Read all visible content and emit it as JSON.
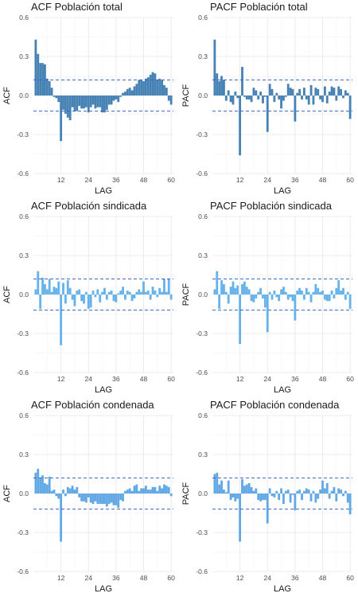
{
  "chart_data": [
    {
      "type": "bar",
      "title": "ACF Población total",
      "xlabel": "LAG",
      "ylabel": "ACF",
      "bar_color": "#4682b4",
      "ci_color": "#3366cc",
      "ylim": [
        -0.6,
        0.6
      ],
      "yticks": [
        "-0.6",
        "-0.3",
        "0.0",
        "0.3",
        "0.6"
      ],
      "xlim": [
        0,
        61
      ],
      "xticks": [
        12,
        24,
        36,
        48,
        60
      ],
      "ci": 0.12,
      "grid": true,
      "x": [
        1,
        2,
        3,
        4,
        5,
        6,
        7,
        8,
        9,
        10,
        11,
        12,
        13,
        14,
        15,
        16,
        17,
        18,
        19,
        20,
        21,
        22,
        23,
        24,
        25,
        26,
        27,
        28,
        29,
        30,
        31,
        32,
        33,
        34,
        35,
        36,
        37,
        38,
        39,
        40,
        41,
        42,
        43,
        44,
        45,
        46,
        47,
        48,
        49,
        50,
        51,
        52,
        53,
        54,
        55,
        56,
        57,
        58,
        59,
        60
      ],
      "values": [
        0.43,
        0.32,
        0.25,
        0.25,
        0.24,
        0.13,
        0.11,
        0.06,
        -0.01,
        -0.02,
        -0.05,
        -0.35,
        -0.11,
        -0.14,
        -0.17,
        -0.19,
        -0.09,
        -0.12,
        -0.12,
        -0.08,
        -0.1,
        -0.1,
        -0.09,
        -0.13,
        -0.09,
        -0.07,
        -0.1,
        -0.09,
        -0.09,
        -0.13,
        -0.13,
        -0.11,
        -0.07,
        -0.07,
        -0.04,
        -0.03,
        -0.05,
        -0.01,
        0.02,
        0.03,
        0.05,
        0.06,
        0.04,
        0.07,
        0.09,
        0.12,
        0.12,
        0.11,
        0.13,
        0.14,
        0.16,
        0.18,
        0.17,
        0.12,
        0.13,
        0.12,
        0.08,
        0.06,
        -0.04,
        -0.07
      ]
    },
    {
      "type": "bar",
      "title": "PACF Población total",
      "xlabel": "LAG",
      "ylabel": "PACF",
      "bar_color": "#4682b4",
      "ci_color": "#3366cc",
      "ylim": [
        -0.6,
        0.6
      ],
      "yticks": [
        "-0.6",
        "-0.3",
        "0.0",
        "0.3",
        "0.6"
      ],
      "xlim": [
        0,
        61
      ],
      "xticks": [
        12,
        24,
        36,
        48,
        60
      ],
      "ci": 0.12,
      "grid": true,
      "x": [
        1,
        2,
        3,
        4,
        5,
        6,
        7,
        8,
        9,
        10,
        11,
        12,
        13,
        14,
        15,
        16,
        17,
        18,
        19,
        20,
        21,
        22,
        23,
        24,
        25,
        26,
        27,
        28,
        29,
        30,
        31,
        32,
        33,
        34,
        35,
        36,
        37,
        38,
        39,
        40,
        41,
        42,
        43,
        44,
        45,
        46,
        47,
        48,
        49,
        50,
        51,
        52,
        53,
        54,
        55,
        56,
        57,
        58,
        59,
        60
      ],
      "values": [
        0.43,
        0.17,
        0.11,
        0.15,
        0.12,
        -0.04,
        0.04,
        -0.05,
        -0.07,
        0.03,
        -0.02,
        -0.46,
        0.22,
        -0.01,
        -0.03,
        -0.03,
        -0.05,
        0.06,
        0.04,
        -0.03,
        0.03,
        -0.06,
        -0.01,
        -0.28,
        0.09,
        0.05,
        -0.05,
        0.02,
        -0.03,
        -0.1,
        -0.04,
        -0.01,
        0.09,
        0.06,
        0.05,
        -0.2,
        0.02,
        0.05,
        -0.03,
        0.06,
        -0.03,
        -0.07,
        0.08,
        -0.07,
        0.06,
        0.05,
        -0.03,
        -0.05,
        0.07,
        -0.06,
        0.03,
        0.07,
        0.06,
        -0.04,
        0.07,
        0.05,
        -0.02,
        0.04,
        0.02,
        -0.18
      ]
    },
    {
      "type": "bar",
      "title": "ACF Población sindicada",
      "xlabel": "LAG",
      "ylabel": "ACF",
      "bar_color": "#66b2ea",
      "ci_color": "#3366cc",
      "ylim": [
        -0.6,
        0.6
      ],
      "yticks": [
        "-0.6",
        "-0.3",
        "0.0",
        "0.3",
        "0.6"
      ],
      "xlim": [
        0,
        61
      ],
      "xticks": [
        12,
        24,
        36,
        48,
        60
      ],
      "ci": 0.12,
      "grid": true,
      "x": [
        1,
        2,
        3,
        4,
        5,
        6,
        7,
        8,
        9,
        10,
        11,
        12,
        13,
        14,
        15,
        16,
        17,
        18,
        19,
        20,
        21,
        22,
        23,
        24,
        25,
        26,
        27,
        28,
        29,
        30,
        31,
        32,
        33,
        34,
        35,
        36,
        37,
        38,
        39,
        40,
        41,
        42,
        43,
        44,
        45,
        46,
        47,
        48,
        49,
        50,
        51,
        52,
        53,
        54,
        55,
        56,
        57,
        58,
        59,
        60
      ],
      "values": [
        0.04,
        0.18,
        -0.11,
        0.13,
        0.08,
        0.04,
        0.12,
        0.02,
        0.06,
        0.05,
        0.1,
        -0.39,
        0.09,
        -0.07,
        0.11,
        0.05,
        -0.04,
        -0.09,
        0.03,
        0.04,
        -0.05,
        -0.07,
        0.02,
        -0.11,
        -0.1,
        0.03,
        -0.02,
        0.04,
        -0.06,
        0.02,
        0.05,
        -0.04,
        0.02,
        0.03,
        -0.05,
        -0.06,
        0.01,
        0.03,
        0.06,
        -0.04,
        0.03,
        0.02,
        -0.05,
        -0.03,
        0.02,
        0.04,
        0.02,
        0.1,
        0.02,
        0.03,
        -0.04,
        0.06,
        0.03,
        -0.02,
        0.05,
        0.02,
        0.12,
        0.02,
        0.12,
        -0.04
      ]
    },
    {
      "type": "bar",
      "title": "PACF Población sindicada",
      "xlabel": "LAG",
      "ylabel": "PACF",
      "bar_color": "#66b2ea",
      "ci_color": "#3366cc",
      "ylim": [
        -0.6,
        0.6
      ],
      "yticks": [
        "-0.6",
        "-0.3",
        "0.0",
        "0.3",
        "0.6"
      ],
      "xlim": [
        0,
        61
      ],
      "xticks": [
        12,
        24,
        36,
        48,
        60
      ],
      "ci": 0.12,
      "grid": true,
      "x": [
        1,
        2,
        3,
        4,
        5,
        6,
        7,
        8,
        9,
        10,
        11,
        12,
        13,
        14,
        15,
        16,
        17,
        18,
        19,
        20,
        21,
        22,
        23,
        24,
        25,
        26,
        27,
        28,
        29,
        30,
        31,
        32,
        33,
        34,
        35,
        36,
        37,
        38,
        39,
        40,
        41,
        42,
        43,
        44,
        45,
        46,
        47,
        48,
        49,
        50,
        51,
        52,
        53,
        54,
        55,
        56,
        57,
        58,
        59,
        60
      ],
      "values": [
        0.04,
        0.18,
        -0.11,
        0.11,
        0.08,
        0.02,
        -0.07,
        0.06,
        0.1,
        0.05,
        0.07,
        -0.38,
        0.08,
        0.1,
        0.06,
        0.04,
        -0.05,
        -0.06,
        -0.03,
        0.02,
        0.05,
        -0.03,
        -0.1,
        -0.29,
        0.02,
        -0.04,
        0.03,
        -0.02,
        -0.05,
        0.04,
        0.06,
        0.02,
        -0.04,
        -0.02,
        -0.05,
        -0.2,
        0.03,
        0.05,
        0.03,
        -0.04,
        0.05,
        0.02,
        -0.06,
        0.02,
        0.08,
        0.05,
        0.02,
        0.03,
        -0.04,
        -0.05,
        -0.05,
        0.03,
        -0.03,
        0.05,
        0.11,
        0.03,
        0.05,
        -0.04,
        0.02,
        -0.11
      ]
    },
    {
      "type": "bar",
      "title": "ACF Población condenada",
      "xlabel": "LAG",
      "ylabel": "ACF",
      "bar_color": "#62a8e4",
      "ci_color": "#3366cc",
      "ylim": [
        -0.6,
        0.6
      ],
      "yticks": [
        "-0.6",
        "-0.3",
        "0.0",
        "0.3",
        "0.6"
      ],
      "xlim": [
        0,
        61
      ],
      "xticks": [
        12,
        24,
        36,
        48,
        60
      ],
      "ci": 0.12,
      "grid": true,
      "x": [
        1,
        2,
        3,
        4,
        5,
        6,
        7,
        8,
        9,
        10,
        11,
        12,
        13,
        14,
        15,
        16,
        17,
        18,
        19,
        20,
        21,
        22,
        23,
        24,
        25,
        26,
        27,
        28,
        29,
        30,
        31,
        32,
        33,
        34,
        35,
        36,
        37,
        38,
        39,
        40,
        41,
        42,
        43,
        44,
        45,
        46,
        47,
        48,
        49,
        50,
        51,
        52,
        53,
        54,
        55,
        56,
        57,
        58,
        59,
        60
      ],
      "values": [
        0.16,
        0.19,
        0.12,
        0.14,
        0.08,
        0.07,
        0.13,
        0.02,
        0.03,
        -0.02,
        -0.04,
        -0.37,
        0.03,
        -0.02,
        0.05,
        0.04,
        0.06,
        0.03,
        0.05,
        -0.03,
        -0.06,
        -0.06,
        -0.07,
        -0.03,
        -0.07,
        -0.08,
        -0.06,
        -0.08,
        -0.08,
        -0.08,
        -0.08,
        -0.1,
        -0.08,
        -0.07,
        -0.09,
        -0.09,
        -0.11,
        -0.05,
        -0.06,
        0.02,
        0.03,
        0.04,
        0.02,
        0.06,
        0.07,
        0.02,
        0.04,
        0.04,
        0.06,
        0.03,
        0.03,
        0.05,
        0.05,
        0.02,
        0.06,
        0.04,
        0.07,
        0.06,
        0.05,
        -0.02
      ]
    },
    {
      "type": "bar",
      "title": "PACF Población condenada",
      "xlabel": "LAG",
      "ylabel": "PACF",
      "bar_color": "#62a8e4",
      "ci_color": "#3366cc",
      "ylim": [
        -0.6,
        0.6
      ],
      "yticks": [
        "-0.6",
        "-0.3",
        "0.0",
        "0.3",
        "0.6"
      ],
      "xlim": [
        0,
        61
      ],
      "xticks": [
        12,
        24,
        36,
        48,
        60
      ],
      "ci": 0.12,
      "grid": true,
      "x": [
        1,
        2,
        3,
        4,
        5,
        6,
        7,
        8,
        9,
        10,
        11,
        12,
        13,
        14,
        15,
        16,
        17,
        18,
        19,
        20,
        21,
        22,
        23,
        24,
        25,
        26,
        27,
        28,
        29,
        30,
        31,
        32,
        33,
        34,
        35,
        36,
        37,
        38,
        39,
        40,
        41,
        42,
        43,
        44,
        45,
        46,
        47,
        48,
        49,
        50,
        51,
        52,
        53,
        54,
        55,
        56,
        57,
        58,
        59,
        60
      ],
      "values": [
        0.15,
        0.16,
        0.07,
        0.1,
        0.03,
        0.01,
        0.1,
        -0.05,
        -0.03,
        -0.06,
        -0.04,
        -0.37,
        0.11,
        0.06,
        0.07,
        0.08,
        0.05,
        0.02,
        0.04,
        -0.05,
        -0.06,
        -0.05,
        -0.05,
        -0.23,
        0.04,
        -0.02,
        -0.03,
        0.02,
        -0.05,
        0.04,
        -0.08,
        0.02,
        0.03,
        -0.07,
        -0.01,
        -0.13,
        0.02,
        0.03,
        -0.05,
        0.02,
        0.04,
        0.03,
        -0.06,
        0.02,
        -0.07,
        -0.04,
        0.03,
        0.1,
        0.04,
        0.08,
        -0.04,
        0.02,
        0.05,
        -0.06,
        0.04,
        0.03,
        -0.02,
        0.02,
        -0.07,
        -0.16
      ]
    }
  ]
}
